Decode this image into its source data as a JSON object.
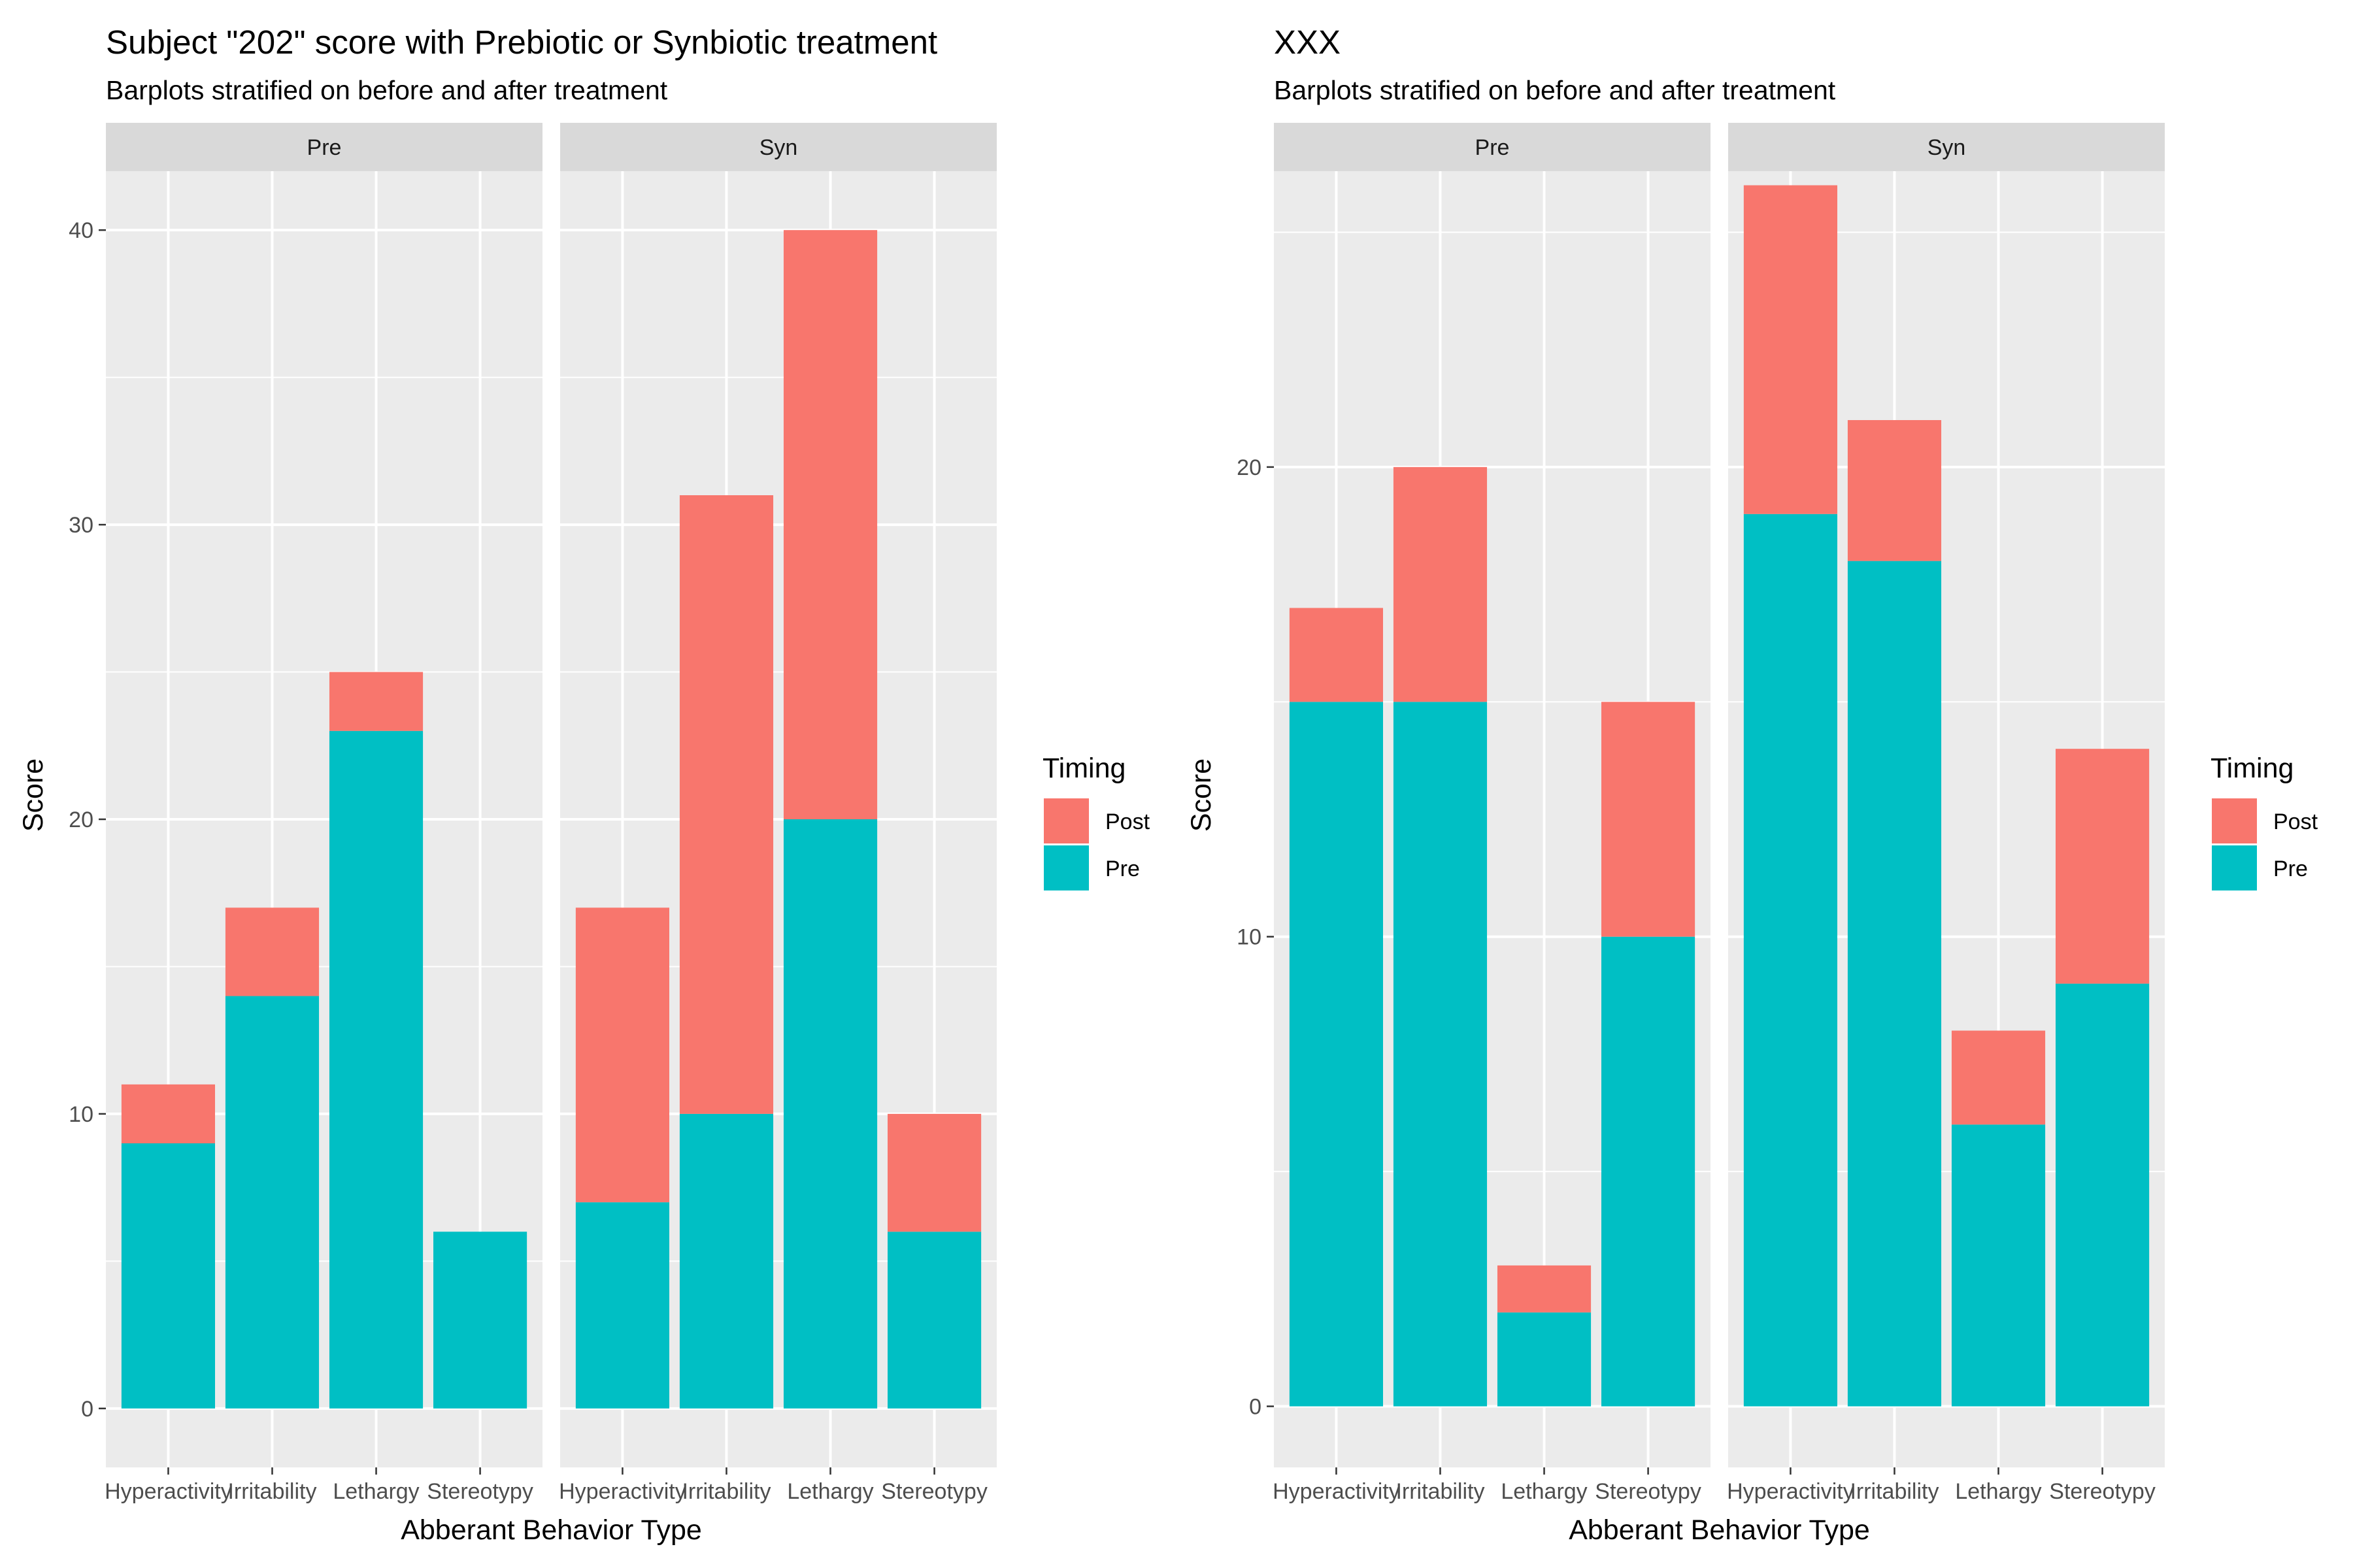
{
  "colors": {
    "post": "#F8766D",
    "pre": "#00BFC4",
    "panel_bg": "#EBEBEB",
    "strip_bg": "#D9D9D9",
    "grid": "#FFFFFF",
    "tick": "#333333"
  },
  "chart_data": [
    {
      "type": "bar",
      "stacked": true,
      "title": "Subject \"202\" score with Prebiotic or Synbiotic treatment",
      "subtitle": "Barplots stratified on before and after treatment",
      "xlabel": "Abberant Behavior Type",
      "ylabel": "Score",
      "ylim": [
        -2,
        42
      ],
      "yticks": [
        0,
        10,
        20,
        30,
        40
      ],
      "grid": true,
      "legend": {
        "title": "Timing",
        "position": "right",
        "entries": [
          "Post",
          "Pre"
        ]
      },
      "categories": [
        "Hyperactivity",
        "Irritability",
        "Lethargy",
        "Stereotypy"
      ],
      "facets": [
        {
          "label": "Pre",
          "series": [
            {
              "name": "Pre",
              "values": [
                9,
                14,
                23,
                6
              ]
            },
            {
              "name": "Post",
              "values": [
                2,
                3,
                2,
                0
              ]
            }
          ]
        },
        {
          "label": "Syn",
          "series": [
            {
              "name": "Pre",
              "values": [
                7,
                10,
                20,
                6
              ]
            },
            {
              "name": "Post",
              "values": [
                10,
                21,
                20,
                4
              ]
            }
          ]
        }
      ]
    },
    {
      "type": "bar",
      "stacked": true,
      "title": "XXX",
      "subtitle": "Barplots stratified on before and after treatment",
      "xlabel": "Abberant Behavior Type",
      "ylabel": "Score",
      "ylim": [
        -1.3,
        26.3
      ],
      "yticks": [
        0,
        10,
        20
      ],
      "grid": true,
      "legend": {
        "title": "Timing",
        "position": "right",
        "entries": [
          "Post",
          "Pre"
        ]
      },
      "categories": [
        "Hyperactivity",
        "Irritability",
        "Lethargy",
        "Stereotypy"
      ],
      "facets": [
        {
          "label": "Pre",
          "series": [
            {
              "name": "Pre",
              "values": [
                15,
                15,
                2,
                10
              ]
            },
            {
              "name": "Post",
              "values": [
                2,
                5,
                1,
                5
              ]
            }
          ]
        },
        {
          "label": "Syn",
          "series": [
            {
              "name": "Pre",
              "values": [
                19,
                18,
                6,
                9
              ]
            },
            {
              "name": "Post",
              "values": [
                7,
                3,
                2,
                5
              ]
            }
          ]
        }
      ]
    }
  ]
}
